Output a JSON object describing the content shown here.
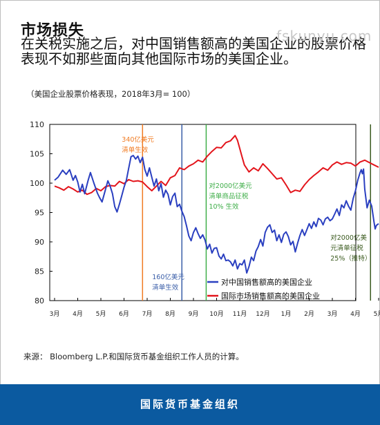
{
  "header": {
    "title": "市场损失",
    "subtitle": "在关税实施之后，对中国销售额高的美国企业的股票价格表现不如那些面向其他国际市场的美国企业。",
    "units_note": "（美国企业股票价格表现，2018年3月= 100）",
    "watermark": "fskunyu.com"
  },
  "chart_data": {
    "type": "line",
    "title": "",
    "xlabel": "",
    "ylabel": "",
    "ylim": [
      80,
      110
    ],
    "yticks": [
      80,
      85,
      90,
      95,
      100,
      105,
      110
    ],
    "x_tick_labels": [
      "3月",
      "4月",
      "5月",
      "6月",
      "7月",
      "8月",
      "9月",
      "10月",
      "11月",
      "12月",
      "1月",
      "2月",
      "3月",
      "4月",
      "5月"
    ],
    "grid": false,
    "legend_position": "bottom-right",
    "series": [
      {
        "name": "对中国销售额高的美国企业",
        "color": "#2a3fc0",
        "points": [
          [
            0,
            100.5
          ],
          [
            0.15,
            101.0
          ],
          [
            0.35,
            102.2
          ],
          [
            0.5,
            101.5
          ],
          [
            0.65,
            102.3
          ],
          [
            0.8,
            100.5
          ],
          [
            0.9,
            101.3
          ],
          [
            1.0,
            100.2
          ],
          [
            1.1,
            98.5
          ],
          [
            1.2,
            99.8
          ],
          [
            1.3,
            98.2
          ],
          [
            1.45,
            100.5
          ],
          [
            1.55,
            101.8
          ],
          [
            1.7,
            100.0
          ],
          [
            1.85,
            98.3
          ],
          [
            1.95,
            97.5
          ],
          [
            2.05,
            96.8
          ],
          [
            2.15,
            98.2
          ],
          [
            2.3,
            100.4
          ],
          [
            2.4,
            99.5
          ],
          [
            2.5,
            98.2
          ],
          [
            2.6,
            96.0
          ],
          [
            2.7,
            95.1
          ],
          [
            2.8,
            96.4
          ],
          [
            2.9,
            97.8
          ],
          [
            3.0,
            99.3
          ],
          [
            3.1,
            100.5
          ],
          [
            3.2,
            102.5
          ],
          [
            3.3,
            104.5
          ],
          [
            3.4,
            104.7
          ],
          [
            3.5,
            104.1
          ],
          [
            3.6,
            104.6
          ],
          [
            3.7,
            103.5
          ],
          [
            3.8,
            104.4
          ],
          [
            3.9,
            102.3
          ],
          [
            4.0,
            101.2
          ],
          [
            4.1,
            102.6
          ],
          [
            4.2,
            101.0
          ],
          [
            4.3,
            99.5
          ],
          [
            4.4,
            100.7
          ],
          [
            4.5,
            98.7
          ],
          [
            4.6,
            99.9
          ],
          [
            4.7,
            97.6
          ],
          [
            4.8,
            98.8
          ],
          [
            4.9,
            98.1
          ],
          [
            5.0,
            96.3
          ],
          [
            5.1,
            97.7
          ],
          [
            5.2,
            98.3
          ],
          [
            5.3,
            96.0
          ],
          [
            5.4,
            96.4
          ],
          [
            5.5,
            95.2
          ],
          [
            5.6,
            94.3
          ],
          [
            5.7,
            92.7
          ],
          [
            5.8,
            91.0
          ],
          [
            5.9,
            90.2
          ],
          [
            6.0,
            91.6
          ],
          [
            6.1,
            92.4
          ],
          [
            6.2,
            91.4
          ],
          [
            6.3,
            90.6
          ],
          [
            6.4,
            91.2
          ],
          [
            6.5,
            90.3
          ],
          [
            6.6,
            88.8
          ],
          [
            6.7,
            89.6
          ],
          [
            6.8,
            88.1
          ],
          [
            6.9,
            88.9
          ],
          [
            7.0,
            89.0
          ],
          [
            7.1,
            87.6
          ],
          [
            7.2,
            87.1
          ],
          [
            7.3,
            87.9
          ],
          [
            7.4,
            86.8
          ],
          [
            7.5,
            86.9
          ],
          [
            7.6,
            86.6
          ],
          [
            7.7,
            85.9
          ],
          [
            7.8,
            86.9
          ],
          [
            7.9,
            85.4
          ],
          [
            8.0,
            86.3
          ],
          [
            8.1,
            86.1
          ],
          [
            8.2,
            86.9
          ],
          [
            8.3,
            84.7
          ],
          [
            8.4,
            85.8
          ],
          [
            8.5,
            87.4
          ],
          [
            8.6,
            86.8
          ],
          [
            8.7,
            88.4
          ],
          [
            8.8,
            89.2
          ],
          [
            8.9,
            90.4
          ],
          [
            9.0,
            89.3
          ],
          [
            9.1,
            91.6
          ],
          [
            9.2,
            92.5
          ],
          [
            9.3,
            92.9
          ],
          [
            9.4,
            91.6
          ],
          [
            9.5,
            92.0
          ],
          [
            9.6,
            90.2
          ],
          [
            9.7,
            91.2
          ],
          [
            9.8,
            89.9
          ],
          [
            9.9,
            91.3
          ],
          [
            10.0,
            91.7
          ],
          [
            10.1,
            90.9
          ],
          [
            10.2,
            89.5
          ],
          [
            10.3,
            90.1
          ],
          [
            10.4,
            88.3
          ],
          [
            10.5,
            89.8
          ],
          [
            10.6,
            91.1
          ],
          [
            10.7,
            92.1
          ],
          [
            10.8,
            91.1
          ],
          [
            10.9,
            92.1
          ],
          [
            11.0,
            93.1
          ],
          [
            11.1,
            92.3
          ],
          [
            11.2,
            93.4
          ],
          [
            11.3,
            92.6
          ],
          [
            11.4,
            94.0
          ],
          [
            11.5,
            93.7
          ],
          [
            11.6,
            92.9
          ],
          [
            11.7,
            93.9
          ],
          [
            11.8,
            94.2
          ],
          [
            11.9,
            93.6
          ],
          [
            12.0,
            93.9
          ],
          [
            12.1,
            94.7
          ],
          [
            12.2,
            95.6
          ],
          [
            12.3,
            94.5
          ],
          [
            12.4,
            96.3
          ],
          [
            12.5,
            95.8
          ],
          [
            12.6,
            97.0
          ],
          [
            12.7,
            96.1
          ],
          [
            12.8,
            95.4
          ],
          [
            12.9,
            97.4
          ],
          [
            13.0,
            98.7
          ],
          [
            13.1,
            100.5
          ],
          [
            13.2,
            101.8
          ],
          [
            13.25,
            102.3
          ],
          [
            13.3,
            101.6
          ],
          [
            13.35,
            102.4
          ],
          [
            13.4,
            99.0
          ],
          [
            13.5,
            95.8
          ],
          [
            13.6,
            97.1
          ],
          [
            13.7,
            96.1
          ],
          [
            13.8,
            93.4
          ],
          [
            13.85,
            92.2
          ],
          [
            13.9,
            92.8
          ],
          [
            14.0,
            93.1
          ]
        ]
      },
      {
        "name": "国际市场销售额高的美国企业",
        "color": "#e3141b",
        "points": [
          [
            0,
            99.5
          ],
          [
            0.2,
            99.2
          ],
          [
            0.4,
            98.8
          ],
          [
            0.6,
            99.4
          ],
          [
            0.8,
            99.0
          ],
          [
            1.0,
            98.5
          ],
          [
            1.2,
            98.8
          ],
          [
            1.4,
            98.1
          ],
          [
            1.6,
            98.4
          ],
          [
            1.8,
            99.1
          ],
          [
            2.0,
            98.7
          ],
          [
            2.2,
            99.4
          ],
          [
            2.4,
            99.6
          ],
          [
            2.6,
            99.5
          ],
          [
            2.8,
            100.3
          ],
          [
            3.0,
            99.9
          ],
          [
            3.2,
            100.6
          ],
          [
            3.4,
            100.3
          ],
          [
            3.6,
            100.4
          ],
          [
            3.8,
            100.2
          ],
          [
            4.0,
            99.4
          ],
          [
            4.2,
            98.7
          ],
          [
            4.4,
            99.5
          ],
          [
            4.6,
            100.3
          ],
          [
            4.8,
            99.6
          ],
          [
            5.0,
            100.9
          ],
          [
            5.2,
            101.3
          ],
          [
            5.4,
            102.6
          ],
          [
            5.6,
            102.3
          ],
          [
            5.8,
            102.9
          ],
          [
            6.0,
            103.3
          ],
          [
            6.2,
            103.9
          ],
          [
            6.4,
            103.6
          ],
          [
            6.6,
            104.6
          ],
          [
            6.8,
            105.4
          ],
          [
            7.0,
            106.1
          ],
          [
            7.2,
            106.0
          ],
          [
            7.4,
            106.9
          ],
          [
            7.6,
            107.2
          ],
          [
            7.8,
            108.1
          ],
          [
            7.9,
            107.3
          ],
          [
            8.0,
            105.9
          ],
          [
            8.1,
            104.5
          ],
          [
            8.2,
            103.1
          ],
          [
            8.4,
            101.9
          ],
          [
            8.6,
            102.6
          ],
          [
            8.8,
            102.1
          ],
          [
            9.0,
            103.3
          ],
          [
            9.2,
            102.5
          ],
          [
            9.4,
            101.6
          ],
          [
            9.6,
            100.7
          ],
          [
            9.8,
            100.9
          ],
          [
            10.0,
            99.7
          ],
          [
            10.2,
            98.4
          ],
          [
            10.4,
            98.8
          ],
          [
            10.6,
            98.6
          ],
          [
            10.8,
            99.7
          ],
          [
            11.0,
            100.6
          ],
          [
            11.2,
            101.3
          ],
          [
            11.4,
            101.9
          ],
          [
            11.6,
            102.6
          ],
          [
            11.8,
            102.2
          ],
          [
            12.0,
            103.1
          ],
          [
            12.2,
            103.6
          ],
          [
            12.4,
            103.2
          ],
          [
            12.6,
            103.5
          ],
          [
            12.8,
            103.4
          ],
          [
            13.0,
            102.9
          ],
          [
            13.2,
            103.6
          ],
          [
            13.4,
            103.9
          ],
          [
            13.6,
            103.5
          ],
          [
            13.8,
            103.1
          ],
          [
            14.0,
            102.7
          ]
        ]
      }
    ],
    "event_lines": [
      {
        "x": 3.8,
        "color": "#f07b22",
        "label": [
          "340亿美元",
          "清单生效"
        ],
        "label_color": "#f07b22"
      },
      {
        "x": 5.5,
        "color": "#3a5ea8",
        "label": [
          "160亿美元",
          "清单生效"
        ],
        "label_color": "#3a5ea8"
      },
      {
        "x": 6.55,
        "color": "#3fae49",
        "label": [
          "对2000亿美元",
          "清单商品征税",
          "10% 生效"
        ],
        "label_color": "#3fae49"
      },
      {
        "x": 13.65,
        "color": "#3a5a1e",
        "label": [
          "对2000亿美",
          "元清单征税",
          "25%（推特）"
        ],
        "label_color": "#3a5a1e"
      }
    ]
  },
  "source_note": "来源： Bloomberg L.P.和国际货币基金组织工作人员的计算。",
  "footer": {
    "organization": "国际货币基金组织",
    "background_color": "#0b5aa0"
  }
}
